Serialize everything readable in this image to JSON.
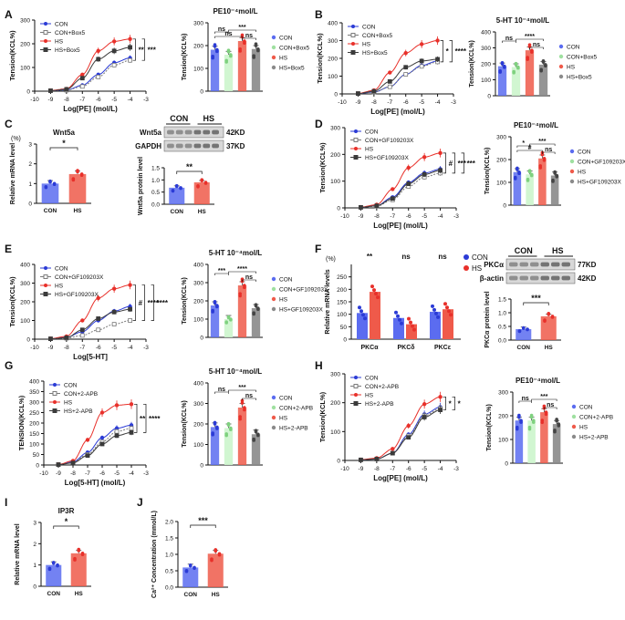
{
  "colors": {
    "con": "#2b3bd6",
    "con_box5": "#9fe0a0",
    "hs": "#e8302a",
    "hs_box5": "#3b3b3b",
    "con_gf": "#909090",
    "hs_gf": "#111111",
    "bar_blue": "#5b6cf0",
    "bar_red": "#ef5a4a"
  },
  "panels": [
    {
      "letter": "A",
      "charts": [
        {
          "type": "line",
          "xlabel": "Log[PE] (mol/L)",
          "ylabel": "Tension(KCL%)",
          "xlim": [
            -10,
            -3
          ],
          "ylim": [
            0,
            300
          ],
          "ticks_x": [
            "-10",
            "-9",
            "-8",
            "-7",
            "-6",
            "-5",
            "-4",
            "-3"
          ],
          "ticks_y": [
            "0",
            "100",
            "200",
            "300"
          ],
          "legend": [
            "CON",
            "CON+Box5",
            "HS",
            "HS+Box5"
          ],
          "x": [
            -9,
            -8,
            -7,
            -6,
            -5,
            -4
          ],
          "series": [
            {
              "name": "CON",
              "values": [
                2,
                5,
                25,
                70,
                120,
                140
              ]
            },
            {
              "name": "CON+Box5",
              "values": [
                2,
                4,
                20,
                60,
                110,
                130
              ]
            },
            {
              "name": "HS",
              "values": [
                3,
                10,
                70,
                170,
                210,
                220
              ]
            },
            {
              "name": "HS+Box5",
              "values": [
                2,
                8,
                55,
                135,
                170,
                185
              ]
            }
          ],
          "sig": [
            "**",
            "***"
          ]
        },
        {
          "type": "bar",
          "title": "PE10⁻⁴mol/L",
          "ylabel": "Tension(KCL%)",
          "ylim": [
            0,
            300
          ],
          "ticks_y": [
            "0",
            "100",
            "200",
            "300"
          ],
          "categories": [
            "CON",
            "CON+Box5",
            "HS",
            "HS+Box5"
          ],
          "values": [
            182,
            160,
            220,
            185
          ],
          "sig": [
            "ns",
            "ns",
            "***",
            "ns"
          ]
        }
      ]
    },
    {
      "letter": "B",
      "charts": [
        {
          "type": "line",
          "xlabel": "Log[PE] (mol/L)",
          "ylabel": "Tension(KCL%)",
          "xlim": [
            -10,
            -3
          ],
          "ylim": [
            0,
            400
          ],
          "ticks_x": [
            "-10",
            "-9",
            "-8",
            "-7",
            "-6",
            "-5",
            "-4",
            "-3"
          ],
          "ticks_y": [
            "0",
            "100",
            "200",
            "300",
            "400"
          ],
          "legend": [
            "CON",
            "CON+Box5",
            "HS",
            "HS+Box5"
          ],
          "x": [
            -9,
            -8,
            -7,
            -6,
            -5,
            -4
          ],
          "series": [
            {
              "name": "CON",
              "values": [
                2,
                10,
                40,
                110,
                160,
                185
              ]
            },
            {
              "name": "CON+Box5",
              "values": [
                2,
                10,
                40,
                110,
                155,
                180
              ]
            },
            {
              "name": "HS",
              "values": [
                3,
                20,
                120,
                230,
                280,
                300
              ]
            },
            {
              "name": "HS+Box5",
              "values": [
                2,
                15,
                70,
                150,
                185,
                195
              ]
            }
          ],
          "sig": [
            "*",
            "****"
          ]
        },
        {
          "type": "bar",
          "title": "5-HT 10⁻⁴mol/L",
          "ylabel": "Tension(KCL%)",
          "ylim": [
            0,
            400
          ],
          "ticks_y": [
            "0",
            "100",
            "200",
            "300",
            "400"
          ],
          "categories": [
            "CON",
            "CON+Box5",
            "HS",
            "HS+Box5"
          ],
          "values": [
            185,
            180,
            285,
            195
          ],
          "sig": [
            "ns",
            "ns",
            "****"
          ]
        }
      ]
    },
    {
      "letter": "C",
      "charts": [
        {
          "type": "bar",
          "title": "Wnt5a",
          "ylabel": "Relative mRNA level",
          "ylim": [
            0,
            3
          ],
          "ticks_y": [
            "0",
            "1",
            "2",
            "3"
          ],
          "categories": [
            "CON",
            "HS"
          ],
          "values": [
            1.0,
            1.48
          ],
          "sig": [
            "*"
          ],
          "unit_label": "(%)"
        },
        {
          "type": "blot",
          "lanes": [
            "CON",
            "HS"
          ],
          "bands": [
            {
              "name": "Wnt5a",
              "kd": "42KD"
            },
            {
              "name": "GAPDH",
              "kd": "37KD"
            }
          ]
        },
        {
          "type": "bar",
          "ylabel": "Wnt5a protein level",
          "ylim": [
            0,
            1.5
          ],
          "ticks_y": [
            "0.0",
            "0.5",
            "1.0",
            "1.5"
          ],
          "categories": [
            "CON",
            "HS"
          ],
          "values": [
            0.68,
            0.9
          ],
          "sig": [
            "**"
          ]
        }
      ]
    },
    {
      "letter": "D",
      "charts": [
        {
          "type": "line",
          "xlabel": "Log[PE] (mol/L)",
          "ylabel": "Tension(KCL%)",
          "xlim": [
            -10,
            -3
          ],
          "ylim": [
            0,
            300
          ],
          "ticks_x": [
            "-10",
            "-9",
            "-8",
            "-7",
            "-6",
            "-5",
            "-4",
            "-3"
          ],
          "ticks_y": [
            "0",
            "100",
            "200",
            "300"
          ],
          "legend": [
            "CON",
            "CON+GF109203X",
            "HS",
            "HS+GF109203X"
          ],
          "x": [
            -9,
            -8,
            -7,
            -6,
            -5,
            -4
          ],
          "series": [
            {
              "name": "CON",
              "values": [
                2,
                8,
                40,
                95,
                130,
                145
              ]
            },
            {
              "name": "CON+GF109203X",
              "values": [
                2,
                6,
                30,
                80,
                115,
                130
              ]
            },
            {
              "name": "HS",
              "values": [
                3,
                12,
                70,
                150,
                190,
                205
              ]
            },
            {
              "name": "HS+GF109203X",
              "values": [
                2,
                8,
                35,
                90,
                125,
                140
              ]
            }
          ],
          "sig": [
            "#",
            "***",
            "***"
          ]
        },
        {
          "type": "bar",
          "title": "PE10⁻⁴mol/L",
          "ylabel": "Tension(KCL%)",
          "ylim": [
            0,
            300
          ],
          "ticks_y": [
            "0",
            "100",
            "200",
            "300"
          ],
          "categories": [
            "CON",
            "CON+GF109203X",
            "HS",
            "HS+GF109203X"
          ],
          "values": [
            145,
            135,
            205,
            130
          ],
          "sig": [
            "*",
            "ns",
            "***",
            "#"
          ]
        }
      ]
    },
    {
      "letter": "E",
      "charts": [
        {
          "type": "line",
          "xlabel": "Log[5-HT]",
          "ylabel": "Tension(KCL%)",
          "xlim": [
            -10,
            -3
          ],
          "ylim": [
            0,
            400
          ],
          "ticks_x": [
            "-10",
            "-9",
            "-8",
            "-7",
            "-6",
            "-5",
            "-4",
            "-3"
          ],
          "ticks_y": [
            "0",
            "100",
            "200",
            "300",
            "400"
          ],
          "legend": [
            "CON",
            "CON+GF109203X",
            "HS",
            "HS+GF109203X"
          ],
          "x": [
            -9,
            -8,
            -7,
            -6,
            -5,
            -4
          ],
          "series": [
            {
              "name": "CON",
              "values": [
                2,
                10,
                40,
                100,
                150,
                175
              ]
            },
            {
              "name": "CON+GF109203X",
              "values": [
                2,
                5,
                20,
                50,
                80,
                100
              ]
            },
            {
              "name": "HS",
              "values": [
                3,
                15,
                100,
                220,
                270,
                290
              ]
            },
            {
              "name": "HS+GF109203X",
              "values": [
                2,
                8,
                50,
                110,
                145,
                160
              ]
            }
          ],
          "sig": [
            "#",
            "****",
            "****"
          ]
        },
        {
          "type": "bar",
          "title": "5-HT 10⁻⁴mol/L",
          "ylabel": "Tension(KCL%)",
          "ylim": [
            0,
            400
          ],
          "ticks_y": [
            "0",
            "100",
            "200",
            "300",
            "400"
          ],
          "categories": [
            "CON",
            "CON+GF109203X",
            "HS",
            "HS+GF109203X"
          ],
          "values": [
            175,
            100,
            285,
            160
          ],
          "sig": [
            "***",
            "ns",
            "****"
          ]
        }
      ]
    },
    {
      "letter": "F",
      "charts": [
        {
          "type": "bar",
          "ylabel": "Relative mRNA levels",
          "unit_label": "(%)",
          "ylim": [
            0,
            300
          ],
          "ticks_y": [
            "0",
            "50",
            "100",
            "150",
            "200",
            "250"
          ],
          "categories": [
            "PKCα",
            "PKCδ",
            "PKCε"
          ],
          "series": [
            {
              "name": "CON",
              "values": [
                105,
                85,
                110
              ]
            },
            {
              "name": "HS",
              "values": [
                190,
                60,
                120
              ]
            }
          ],
          "sig": [
            "**",
            "ns",
            "ns"
          ],
          "legend": [
            "CON",
            "HS"
          ]
        },
        {
          "type": "blot",
          "lanes": [
            "CON",
            "HS"
          ],
          "bands": [
            {
              "name": "PKCα",
              "kd": "77KD"
            },
            {
              "name": "β-actin",
              "kd": "42KD"
            }
          ]
        },
        {
          "type": "bar",
          "ylabel": "PKCα protein level",
          "ylim": [
            0,
            1.5
          ],
          "ticks_y": [
            "0.0",
            "0.5",
            "1.0",
            "1.5"
          ],
          "categories": [
            "CON",
            "HS"
          ],
          "values": [
            0.4,
            0.87
          ],
          "sig": [
            "***"
          ]
        }
      ]
    },
    {
      "letter": "G",
      "charts": [
        {
          "type": "line",
          "xlabel": "Log[5-HT] (mol/L)",
          "ylabel": "TENSION(KCL%)",
          "xlim": [
            -10,
            -3
          ],
          "ylim": [
            0,
            400
          ],
          "ticks_x": [
            "-10",
            "-9",
            "-8",
            "-7",
            "-6",
            "-5",
            "-4",
            "-3"
          ],
          "ticks_y": [
            "0",
            "50",
            "100",
            "150",
            "200",
            "250",
            "300",
            "350",
            "400"
          ],
          "legend": [
            "CON",
            "CON+2-APB",
            "HS",
            "HS+2-APB"
          ],
          "x": [
            -9,
            -8,
            -7,
            -6,
            -5,
            -4
          ],
          "series": [
            {
              "name": "CON",
              "values": [
                2,
                15,
                60,
                130,
                175,
                190
              ]
            },
            {
              "name": "CON+2-APB",
              "values": [
                2,
                12,
                50,
                110,
                160,
                175
              ]
            },
            {
              "name": "HS",
              "values": [
                3,
                20,
                120,
                250,
                285,
                290
              ]
            },
            {
              "name": "HS+2-APB",
              "values": [
                2,
                10,
                45,
                100,
                140,
                155
              ]
            }
          ],
          "sig": [
            "**",
            "****"
          ]
        },
        {
          "type": "bar",
          "title": "5-HT 10⁻⁴mol/L",
          "ylabel": "Tension(KCL%)",
          "ylim": [
            0,
            400
          ],
          "ticks_y": [
            "0",
            "100",
            "200",
            "300",
            "400"
          ],
          "categories": [
            "CON",
            "CON+2-APB",
            "HS",
            "HS+2-APB"
          ],
          "values": [
            185,
            180,
            280,
            150
          ],
          "sig": [
            "ns",
            "ns",
            "***"
          ]
        }
      ]
    },
    {
      "letter": "H",
      "charts": [
        {
          "type": "line",
          "xlabel": "Log[PE] (mol/L)",
          "ylabel": "Tension(KCL%)",
          "xlim": [
            -10,
            -3
          ],
          "ylim": [
            0,
            300
          ],
          "ticks_x": [
            "-10",
            "-9",
            "-8",
            "-7",
            "-6",
            "-5",
            "-4",
            "-3"
          ],
          "ticks_y": [
            "0",
            "100",
            "200",
            "300"
          ],
          "legend": [
            "CON",
            "CON+2-APB",
            "HS",
            "HS+2-APB"
          ],
          "x": [
            -9,
            -8,
            -7,
            -6,
            -5,
            -4
          ],
          "series": [
            {
              "name": "CON",
              "values": [
                2,
                5,
                25,
                90,
                160,
                185
              ]
            },
            {
              "name": "CON+2-APB",
              "values": [
                2,
                5,
                25,
                85,
                155,
                180
              ]
            },
            {
              "name": "HS",
              "values": [
                3,
                8,
                40,
                120,
                195,
                220
              ]
            },
            {
              "name": "HS+2-APB",
              "values": [
                2,
                5,
                25,
                80,
                150,
                175
              ]
            }
          ],
          "sig": [
            "*",
            "*"
          ]
        },
        {
          "type": "bar",
          "title": "PE10⁻⁴mol/L",
          "ylabel": "Tension(KCL%)",
          "ylim": [
            0,
            300
          ],
          "ticks_y": [
            "0",
            "100",
            "200",
            "300"
          ],
          "categories": [
            "CON",
            "CON+2-APB",
            "HS",
            "HS+2-APB"
          ],
          "values": [
            180,
            180,
            215,
            165
          ],
          "sig": [
            "ns",
            "ns",
            "***"
          ]
        }
      ]
    },
    {
      "letter": "I",
      "charts": [
        {
          "type": "bar",
          "title": "IP3R",
          "ylabel": "Relative mRNA level",
          "ylim": [
            0,
            3
          ],
          "ticks_y": [
            "0",
            "1",
            "2",
            "3"
          ],
          "categories": [
            "CON",
            "HS"
          ],
          "values": [
            1.0,
            1.55
          ],
          "sig": [
            "*"
          ]
        }
      ]
    },
    {
      "letter": "J",
      "charts": [
        {
          "type": "bar",
          "ylabel": "Ca²⁺ Concentration (mmol/L)",
          "ylim": [
            0,
            2.0
          ],
          "ticks_y": [
            "0.0",
            "0.5",
            "1.0",
            "1.5",
            "2.0"
          ],
          "categories": [
            "CON",
            "HS"
          ],
          "values": [
            0.6,
            1.02
          ],
          "sig": [
            "***"
          ]
        }
      ]
    }
  ]
}
